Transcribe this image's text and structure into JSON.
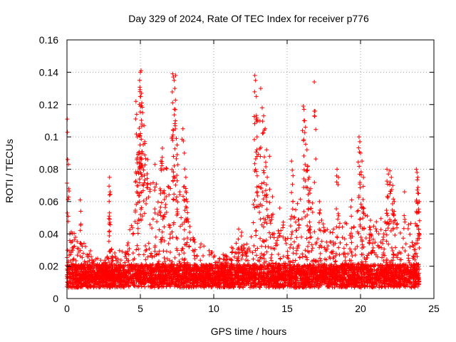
{
  "chart_data": {
    "type": "scatter",
    "title": "Day 329 of 2024, Rate Of TEC Index for receiver p776",
    "xlabel": "GPS time / hours",
    "ylabel": "ROTI / TECUs",
    "xlim": [
      0,
      25
    ],
    "ylim": [
      0,
      0.16
    ],
    "x_ticks": [
      0,
      5,
      10,
      15,
      20,
      25
    ],
    "x_tick_labels": [
      "0",
      "5",
      "10",
      "15",
      "20",
      "25"
    ],
    "y_ticks": [
      0,
      0.02,
      0.04,
      0.06,
      0.08,
      0.1,
      0.12,
      0.14,
      0.16
    ],
    "y_tick_labels": [
      "0",
      "0.02",
      "0.04",
      "0.06",
      "0.08",
      "0.1",
      "0.12",
      "0.14",
      "0.16"
    ],
    "grid": true,
    "marker": "+",
    "series": [
      {
        "name": "ROTI",
        "color": "#ff0000",
        "baseline_level": 0.012,
        "notable_points": [
          {
            "x": 0.02,
            "y": 0.111
          },
          {
            "x": 0.05,
            "y": 0.086
          },
          {
            "x": 0.1,
            "y": 0.083
          },
          {
            "x": 0.9,
            "y": 0.061
          },
          {
            "x": 2.9,
            "y": 0.075
          },
          {
            "x": 2.9,
            "y": 0.064
          },
          {
            "x": 2.9,
            "y": 0.053
          },
          {
            "x": 4.7,
            "y": 0.122
          },
          {
            "x": 4.75,
            "y": 0.114
          },
          {
            "x": 4.8,
            "y": 0.1
          },
          {
            "x": 4.85,
            "y": 0.089
          },
          {
            "x": 4.9,
            "y": 0.101
          },
          {
            "x": 4.95,
            "y": 0.135
          },
          {
            "x": 4.97,
            "y": 0.128
          },
          {
            "x": 5.0,
            "y": 0.14
          },
          {
            "x": 5.05,
            "y": 0.141
          },
          {
            "x": 5.08,
            "y": 0.127
          },
          {
            "x": 5.1,
            "y": 0.121
          },
          {
            "x": 5.15,
            "y": 0.115
          },
          {
            "x": 5.25,
            "y": 0.107
          },
          {
            "x": 5.3,
            "y": 0.097
          },
          {
            "x": 5.5,
            "y": 0.086
          },
          {
            "x": 6.0,
            "y": 0.083
          },
          {
            "x": 6.4,
            "y": 0.085
          },
          {
            "x": 6.5,
            "y": 0.093
          },
          {
            "x": 6.6,
            "y": 0.08
          },
          {
            "x": 7.2,
            "y": 0.139
          },
          {
            "x": 7.25,
            "y": 0.137
          },
          {
            "x": 7.3,
            "y": 0.135
          },
          {
            "x": 7.35,
            "y": 0.13
          },
          {
            "x": 7.4,
            "y": 0.138
          },
          {
            "x": 7.45,
            "y": 0.099
          },
          {
            "x": 7.5,
            "y": 0.095
          },
          {
            "x": 7.9,
            "y": 0.105
          },
          {
            "x": 8.0,
            "y": 0.09
          },
          {
            "x": 8.1,
            "y": 0.075
          },
          {
            "x": 8.2,
            "y": 0.06
          },
          {
            "x": 11.7,
            "y": 0.043
          },
          {
            "x": 11.9,
            "y": 0.041
          },
          {
            "x": 12.8,
            "y": 0.138
          },
          {
            "x": 12.85,
            "y": 0.135
          },
          {
            "x": 12.9,
            "y": 0.125
          },
          {
            "x": 12.95,
            "y": 0.1
          },
          {
            "x": 13.0,
            "y": 0.11
          },
          {
            "x": 13.2,
            "y": 0.13
          },
          {
            "x": 13.3,
            "y": 0.118
          },
          {
            "x": 13.4,
            "y": 0.113
          },
          {
            "x": 13.5,
            "y": 0.105
          },
          {
            "x": 13.6,
            "y": 0.092
          },
          {
            "x": 13.8,
            "y": 0.088
          },
          {
            "x": 14.0,
            "y": 0.063
          },
          {
            "x": 14.5,
            "y": 0.056
          },
          {
            "x": 15.3,
            "y": 0.085
          },
          {
            "x": 15.4,
            "y": 0.076
          },
          {
            "x": 16.1,
            "y": 0.119
          },
          {
            "x": 16.15,
            "y": 0.117
          },
          {
            "x": 16.2,
            "y": 0.11
          },
          {
            "x": 16.25,
            "y": 0.106
          },
          {
            "x": 16.35,
            "y": 0.092
          },
          {
            "x": 16.4,
            "y": 0.082
          },
          {
            "x": 16.5,
            "y": 0.075
          },
          {
            "x": 16.6,
            "y": 0.068
          },
          {
            "x": 16.85,
            "y": 0.134
          },
          {
            "x": 16.9,
            "y": 0.116
          },
          {
            "x": 17.2,
            "y": 0.06
          },
          {
            "x": 18.4,
            "y": 0.08
          },
          {
            "x": 18.5,
            "y": 0.075
          },
          {
            "x": 19.4,
            "y": 0.061
          },
          {
            "x": 19.9,
            "y": 0.1
          },
          {
            "x": 19.95,
            "y": 0.097
          },
          {
            "x": 20.0,
            "y": 0.09
          },
          {
            "x": 20.1,
            "y": 0.085
          },
          {
            "x": 20.2,
            "y": 0.075
          },
          {
            "x": 21.8,
            "y": 0.08
          },
          {
            "x": 21.9,
            "y": 0.077
          },
          {
            "x": 22.0,
            "y": 0.079
          },
          {
            "x": 22.1,
            "y": 0.075
          },
          {
            "x": 22.2,
            "y": 0.07
          },
          {
            "x": 22.3,
            "y": 0.06
          },
          {
            "x": 23.0,
            "y": 0.066
          },
          {
            "x": 23.8,
            "y": 0.08
          },
          {
            "x": 23.85,
            "y": 0.078
          },
          {
            "x": 23.9,
            "y": 0.075
          },
          {
            "x": 23.95,
            "y": 0.065
          },
          {
            "x": 24.0,
            "y": 0.06
          }
        ],
        "activity_envelope": [
          {
            "x": 0,
            "y": 0.045
          },
          {
            "x": 0.5,
            "y": 0.04
          },
          {
            "x": 1,
            "y": 0.035
          },
          {
            "x": 1.5,
            "y": 0.03
          },
          {
            "x": 2,
            "y": 0.025
          },
          {
            "x": 2.5,
            "y": 0.022
          },
          {
            "x": 3,
            "y": 0.03
          },
          {
            "x": 3.5,
            "y": 0.03
          },
          {
            "x": 4,
            "y": 0.035
          },
          {
            "x": 4.5,
            "y": 0.06
          },
          {
            "x": 5,
            "y": 0.09
          },
          {
            "x": 5.5,
            "y": 0.07
          },
          {
            "x": 6,
            "y": 0.07
          },
          {
            "x": 6.5,
            "y": 0.075
          },
          {
            "x": 7,
            "y": 0.08
          },
          {
            "x": 7.5,
            "y": 0.085
          },
          {
            "x": 8,
            "y": 0.07
          },
          {
            "x": 8.5,
            "y": 0.04
          },
          {
            "x": 9,
            "y": 0.035
          },
          {
            "x": 9.5,
            "y": 0.03
          },
          {
            "x": 10,
            "y": 0.028
          },
          {
            "x": 10.5,
            "y": 0.026
          },
          {
            "x": 11,
            "y": 0.028
          },
          {
            "x": 11.5,
            "y": 0.035
          },
          {
            "x": 12,
            "y": 0.032
          },
          {
            "x": 12.5,
            "y": 0.045
          },
          {
            "x": 13,
            "y": 0.075
          },
          {
            "x": 13.5,
            "y": 0.075
          },
          {
            "x": 14,
            "y": 0.05
          },
          {
            "x": 14.5,
            "y": 0.045
          },
          {
            "x": 15,
            "y": 0.05
          },
          {
            "x": 15.5,
            "y": 0.055
          },
          {
            "x": 16,
            "y": 0.065
          },
          {
            "x": 16.5,
            "y": 0.06
          },
          {
            "x": 17,
            "y": 0.055
          },
          {
            "x": 17.5,
            "y": 0.045
          },
          {
            "x": 18,
            "y": 0.04
          },
          {
            "x": 18.5,
            "y": 0.05
          },
          {
            "x": 19,
            "y": 0.045
          },
          {
            "x": 19.5,
            "y": 0.048
          },
          {
            "x": 20,
            "y": 0.06
          },
          {
            "x": 20.5,
            "y": 0.05
          },
          {
            "x": 21,
            "y": 0.045
          },
          {
            "x": 21.5,
            "y": 0.05
          },
          {
            "x": 22,
            "y": 0.06
          },
          {
            "x": 22.5,
            "y": 0.045
          },
          {
            "x": 23,
            "y": 0.045
          },
          {
            "x": 23.5,
            "y": 0.045
          },
          {
            "x": 24,
            "y": 0.06
          }
        ]
      }
    ]
  }
}
